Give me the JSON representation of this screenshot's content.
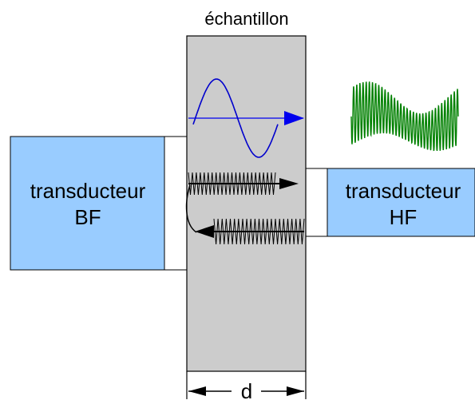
{
  "sample": {
    "label": "échantillon",
    "color": "#cccccc"
  },
  "transducer_bf": {
    "line1": "transducteur",
    "line2": "BF",
    "color": "#99ccff"
  },
  "transducer_hf": {
    "line1": "transducteur",
    "line2": "HF",
    "color": "#99ccff"
  },
  "thickness": {
    "label": "d"
  },
  "colors": {
    "low_freq_wave": "#0000cc",
    "high_freq_signal": "#008000",
    "echo_wave": "#000000",
    "outline": "#000000"
  },
  "icons": [
    "low-frequency-wave-icon",
    "high-frequency-signal-icon",
    "echo-wave-icon",
    "arrow-icon"
  ]
}
